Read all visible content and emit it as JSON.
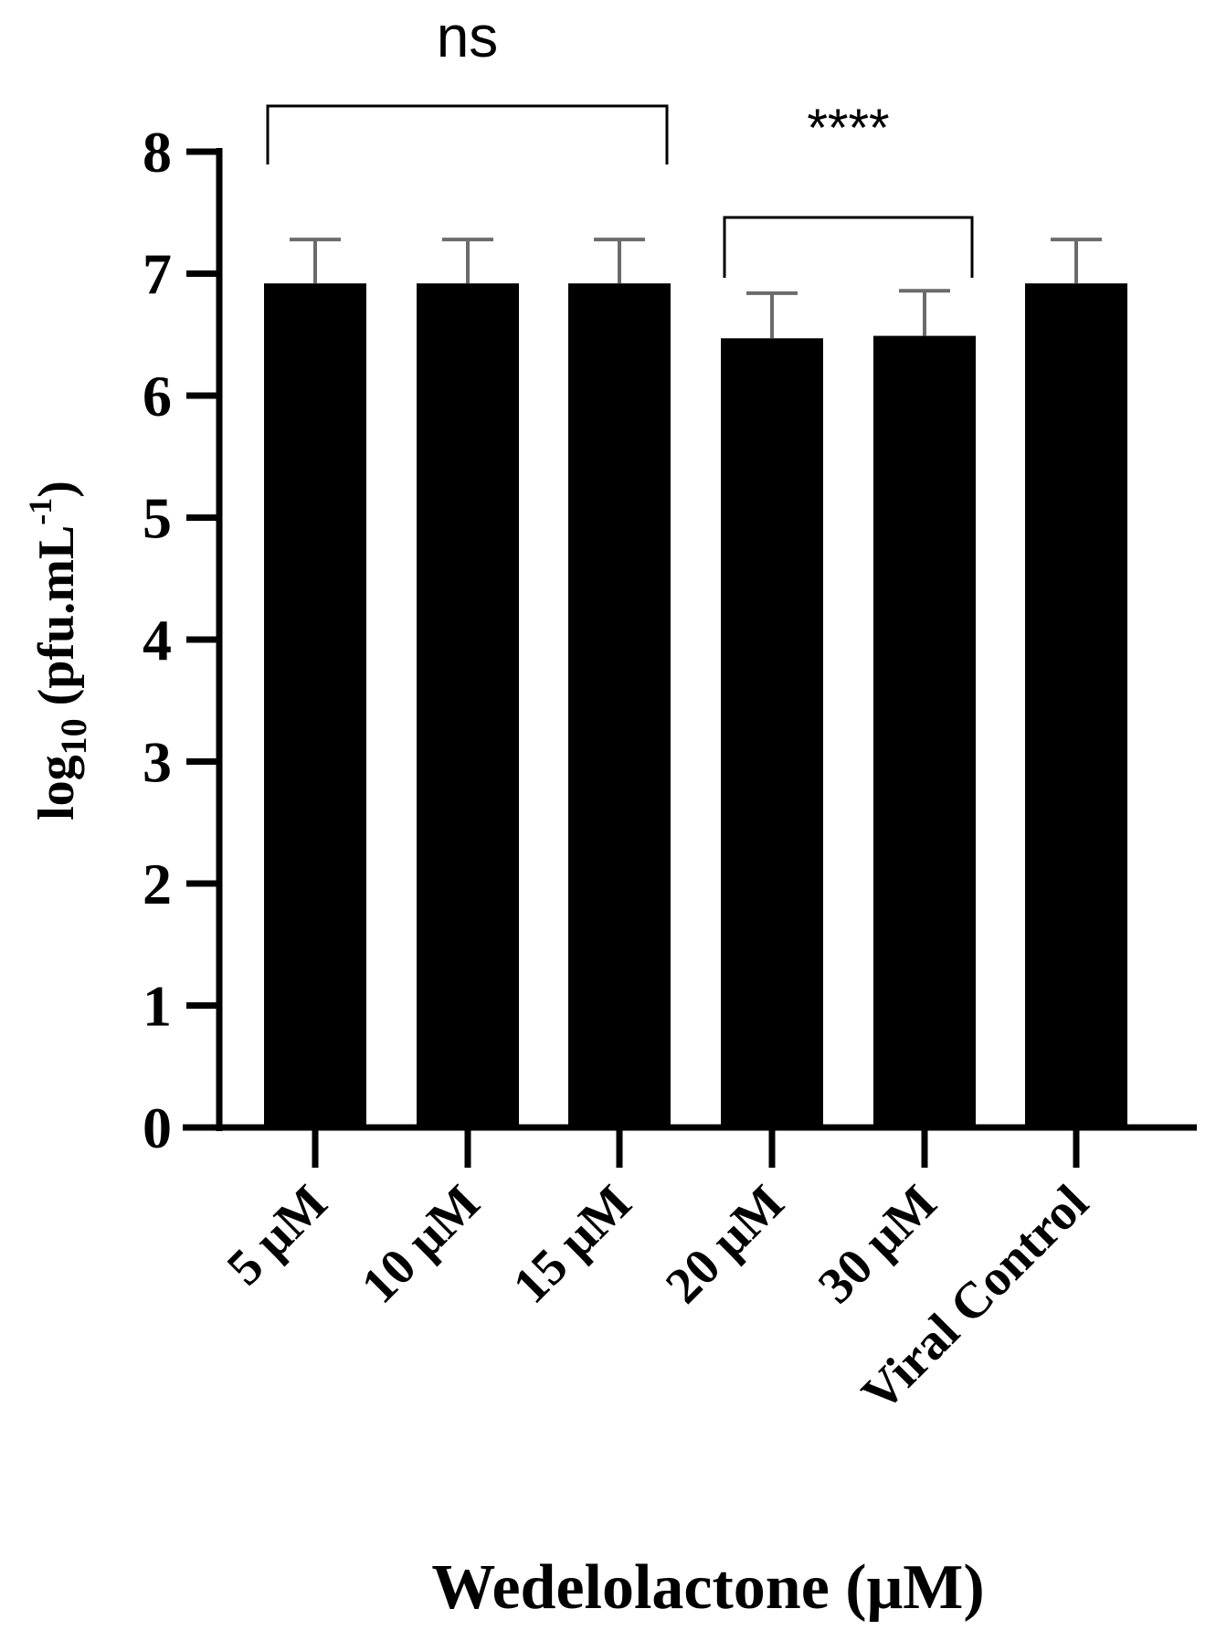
{
  "chart_data": {
    "type": "bar",
    "categories": [
      "5 μM",
      "10 μM",
      "15 μM",
      "20 μM",
      "30 μM",
      "Viral Control"
    ],
    "values": [
      6.92,
      6.92,
      6.92,
      6.47,
      6.49,
      6.92
    ],
    "error": [
      0.36,
      0.36,
      0.36,
      0.37,
      0.37,
      0.36
    ],
    "xlabel": "Wedelolactone (μM)",
    "ylabel_main": "log",
    "ylabel_sub": "10",
    "ylabel_rest": " (pfu.mL",
    "ylabel_sup": "-1",
    "ylabel_close": ")",
    "ylim": [
      0,
      8
    ],
    "yticks": [
      0,
      1,
      2,
      3,
      4,
      5,
      6,
      7,
      8
    ],
    "grid": false,
    "legend": "none",
    "bar_color": "#000000",
    "errorbar_color": "#6b6b6b",
    "annotations": [
      {
        "text": "ns",
        "from": 0,
        "to": 2
      },
      {
        "text": "****",
        "from": 3,
        "to": 4
      }
    ]
  }
}
